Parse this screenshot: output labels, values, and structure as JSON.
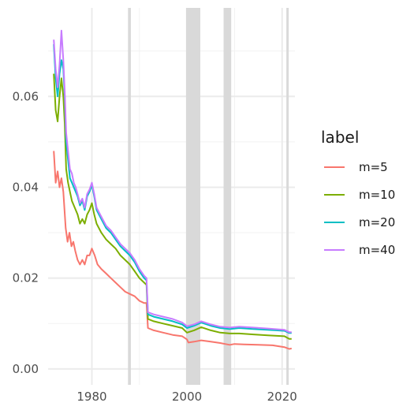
{
  "chart_data": {
    "type": "line",
    "title": "",
    "xlabel": "",
    "ylabel": "",
    "xlim": [
      1970.8,
      2022.7
    ],
    "ylim": [
      -0.0035,
      0.0795
    ],
    "x_ticks": [
      1980,
      2000,
      2020
    ],
    "x_tick_labels": [
      "1980",
      "2000",
      "2020"
    ],
    "y_ticks": [
      0.0,
      0.02,
      0.04,
      0.06
    ],
    "y_tick_labels": [
      "0.00",
      "0.02",
      "0.04",
      "0.06"
    ],
    "grid": true,
    "legend": {
      "title": "label",
      "position": "right"
    },
    "shaded_periods": [
      [
        1987.6,
        1988.2
      ],
      [
        1999.8,
        2002.8
      ],
      [
        2007.7,
        2009.3
      ],
      [
        2020.9,
        2021.3
      ]
    ],
    "shade_color": "#d9d9d9",
    "series": [
      {
        "name": "m=5",
        "color": "#F8766D",
        "points": [
          [
            1972.0,
            0.048
          ],
          [
            1972.4,
            0.041
          ],
          [
            1972.8,
            0.0435
          ],
          [
            1973.2,
            0.04
          ],
          [
            1973.6,
            0.042
          ],
          [
            1974.0,
            0.039
          ],
          [
            1974.5,
            0.031
          ],
          [
            1974.9,
            0.028
          ],
          [
            1975.3,
            0.03
          ],
          [
            1975.7,
            0.027
          ],
          [
            1976.1,
            0.028
          ],
          [
            1976.5,
            0.026
          ],
          [
            1977.0,
            0.024
          ],
          [
            1977.5,
            0.023
          ],
          [
            1978.0,
            0.024
          ],
          [
            1978.5,
            0.023
          ],
          [
            1979.0,
            0.025
          ],
          [
            1979.5,
            0.025
          ],
          [
            1980.0,
            0.0265
          ],
          [
            1980.6,
            0.025
          ],
          [
            1981.2,
            0.023
          ],
          [
            1982.0,
            0.022
          ],
          [
            1983.0,
            0.021
          ],
          [
            1984.0,
            0.02
          ],
          [
            1985.0,
            0.019
          ],
          [
            1986.0,
            0.018
          ],
          [
            1987.0,
            0.017
          ],
          [
            1988.0,
            0.0165
          ],
          [
            1989.0,
            0.016
          ],
          [
            1990.0,
            0.015
          ],
          [
            1991.0,
            0.0145
          ],
          [
            1991.5,
            0.0145
          ],
          [
            1991.8,
            0.009
          ],
          [
            1993.0,
            0.0085
          ],
          [
            1995.0,
            0.008
          ],
          [
            1997.0,
            0.0075
          ],
          [
            1999.0,
            0.0072
          ],
          [
            2000.0,
            0.0065
          ],
          [
            2000.3,
            0.0058
          ],
          [
            2001.5,
            0.006
          ],
          [
            2003.0,
            0.0063
          ],
          [
            2005.0,
            0.006
          ],
          [
            2007.0,
            0.0057
          ],
          [
            2008.0,
            0.0055
          ],
          [
            2009.0,
            0.0053
          ],
          [
            2010.0,
            0.0055
          ],
          [
            2012.0,
            0.0054
          ],
          [
            2015.0,
            0.0053
          ],
          [
            2018.0,
            0.0052
          ],
          [
            2020.5,
            0.0048
          ],
          [
            2021.5,
            0.0044
          ],
          [
            2022.0,
            0.0045
          ]
        ]
      },
      {
        "name": "m=10",
        "color": "#7CAE00",
        "points": [
          [
            1972.0,
            0.065
          ],
          [
            1972.4,
            0.057
          ],
          [
            1972.8,
            0.0545
          ],
          [
            1973.2,
            0.06
          ],
          [
            1973.6,
            0.064
          ],
          [
            1974.0,
            0.06
          ],
          [
            1974.3,
            0.054
          ],
          [
            1974.6,
            0.044
          ],
          [
            1975.0,
            0.041
          ],
          [
            1975.4,
            0.039
          ],
          [
            1975.8,
            0.037
          ],
          [
            1976.2,
            0.036
          ],
          [
            1976.6,
            0.035
          ],
          [
            1977.0,
            0.034
          ],
          [
            1977.5,
            0.032
          ],
          [
            1978.0,
            0.033
          ],
          [
            1978.5,
            0.032
          ],
          [
            1979.0,
            0.034
          ],
          [
            1979.5,
            0.035
          ],
          [
            1980.0,
            0.0365
          ],
          [
            1980.5,
            0.034
          ],
          [
            1981.0,
            0.032
          ],
          [
            1982.0,
            0.03
          ],
          [
            1983.0,
            0.0285
          ],
          [
            1984.0,
            0.0275
          ],
          [
            1985.0,
            0.0265
          ],
          [
            1986.0,
            0.025
          ],
          [
            1987.0,
            0.024
          ],
          [
            1988.0,
            0.023
          ],
          [
            1989.0,
            0.0215
          ],
          [
            1990.0,
            0.02
          ],
          [
            1991.0,
            0.019
          ],
          [
            1991.5,
            0.0185
          ],
          [
            1991.8,
            0.011
          ],
          [
            1993.0,
            0.0105
          ],
          [
            1995.0,
            0.01
          ],
          [
            1997.0,
            0.0095
          ],
          [
            1999.0,
            0.009
          ],
          [
            2000.0,
            0.008
          ],
          [
            2001.5,
            0.0085
          ],
          [
            2003.0,
            0.0092
          ],
          [
            2005.0,
            0.0085
          ],
          [
            2007.0,
            0.008
          ],
          [
            2009.0,
            0.0078
          ],
          [
            2011.0,
            0.0078
          ],
          [
            2014.0,
            0.0076
          ],
          [
            2017.0,
            0.0074
          ],
          [
            2020.5,
            0.0072
          ],
          [
            2021.5,
            0.0066
          ],
          [
            2022.0,
            0.0066
          ]
        ]
      },
      {
        "name": "m=20",
        "color": "#00BFC4",
        "points": [
          [
            1972.0,
            0.0715
          ],
          [
            1972.4,
            0.064
          ],
          [
            1972.8,
            0.06
          ],
          [
            1973.2,
            0.065
          ],
          [
            1973.6,
            0.068
          ],
          [
            1974.0,
            0.066
          ],
          [
            1974.3,
            0.06
          ],
          [
            1974.6,
            0.05
          ],
          [
            1975.0,
            0.046
          ],
          [
            1975.4,
            0.042
          ],
          [
            1975.8,
            0.041
          ],
          [
            1976.2,
            0.04
          ],
          [
            1976.6,
            0.039
          ],
          [
            1977.0,
            0.038
          ],
          [
            1977.5,
            0.036
          ],
          [
            1978.0,
            0.037
          ],
          [
            1978.5,
            0.035
          ],
          [
            1979.0,
            0.038
          ],
          [
            1979.5,
            0.039
          ],
          [
            1980.0,
            0.0405
          ],
          [
            1980.5,
            0.038
          ],
          [
            1981.0,
            0.035
          ],
          [
            1982.0,
            0.033
          ],
          [
            1983.0,
            0.031
          ],
          [
            1984.0,
            0.03
          ],
          [
            1985.0,
            0.0285
          ],
          [
            1986.0,
            0.027
          ],
          [
            1987.0,
            0.026
          ],
          [
            1988.0,
            0.025
          ],
          [
            1989.0,
            0.0235
          ],
          [
            1990.0,
            0.0215
          ],
          [
            1991.0,
            0.02
          ],
          [
            1991.5,
            0.0195
          ],
          [
            1991.8,
            0.012
          ],
          [
            1993.0,
            0.0115
          ],
          [
            1995.0,
            0.011
          ],
          [
            1997.0,
            0.0105
          ],
          [
            1999.0,
            0.0098
          ],
          [
            2000.0,
            0.009
          ],
          [
            2001.5,
            0.0095
          ],
          [
            2003.0,
            0.0102
          ],
          [
            2005.0,
            0.0095
          ],
          [
            2007.0,
            0.009
          ],
          [
            2009.0,
            0.0088
          ],
          [
            2011.0,
            0.009
          ],
          [
            2014.0,
            0.0088
          ],
          [
            2017.0,
            0.0086
          ],
          [
            2020.5,
            0.0084
          ],
          [
            2021.5,
            0.0079
          ],
          [
            2022.0,
            0.0079
          ]
        ]
      },
      {
        "name": "m=40",
        "color": "#C77CFF",
        "points": [
          [
            1972.0,
            0.0725
          ],
          [
            1972.4,
            0.066
          ],
          [
            1972.8,
            0.062
          ],
          [
            1973.2,
            0.067
          ],
          [
            1973.6,
            0.0745
          ],
          [
            1974.0,
            0.068
          ],
          [
            1974.3,
            0.061
          ],
          [
            1974.6,
            0.052
          ],
          [
            1975.0,
            0.048
          ],
          [
            1975.4,
            0.044
          ],
          [
            1975.8,
            0.043
          ],
          [
            1976.2,
            0.041
          ],
          [
            1976.6,
            0.04
          ],
          [
            1977.0,
            0.0385
          ],
          [
            1977.5,
            0.0365
          ],
          [
            1978.0,
            0.0375
          ],
          [
            1978.5,
            0.0355
          ],
          [
            1979.0,
            0.0385
          ],
          [
            1979.5,
            0.0395
          ],
          [
            1980.0,
            0.041
          ],
          [
            1980.5,
            0.0385
          ],
          [
            1981.0,
            0.0355
          ],
          [
            1982.0,
            0.0335
          ],
          [
            1983.0,
            0.0315
          ],
          [
            1984.0,
            0.0305
          ],
          [
            1985.0,
            0.029
          ],
          [
            1986.0,
            0.0275
          ],
          [
            1987.0,
            0.0265
          ],
          [
            1988.0,
            0.0255
          ],
          [
            1989.0,
            0.024
          ],
          [
            1990.0,
            0.022
          ],
          [
            1991.0,
            0.0205
          ],
          [
            1991.5,
            0.02
          ],
          [
            1991.8,
            0.0125
          ],
          [
            1993.0,
            0.012
          ],
          [
            1995.0,
            0.0115
          ],
          [
            1997.0,
            0.011
          ],
          [
            1999.0,
            0.0102
          ],
          [
            2000.0,
            0.0094
          ],
          [
            2001.5,
            0.0098
          ],
          [
            2003.0,
            0.0105
          ],
          [
            2005.0,
            0.0098
          ],
          [
            2007.0,
            0.0093
          ],
          [
            2009.0,
            0.0091
          ],
          [
            2011.0,
            0.0093
          ],
          [
            2014.0,
            0.0091
          ],
          [
            2017.0,
            0.0089
          ],
          [
            2020.5,
            0.0086
          ],
          [
            2021.5,
            0.0081
          ],
          [
            2022.0,
            0.0081
          ]
        ]
      }
    ]
  }
}
